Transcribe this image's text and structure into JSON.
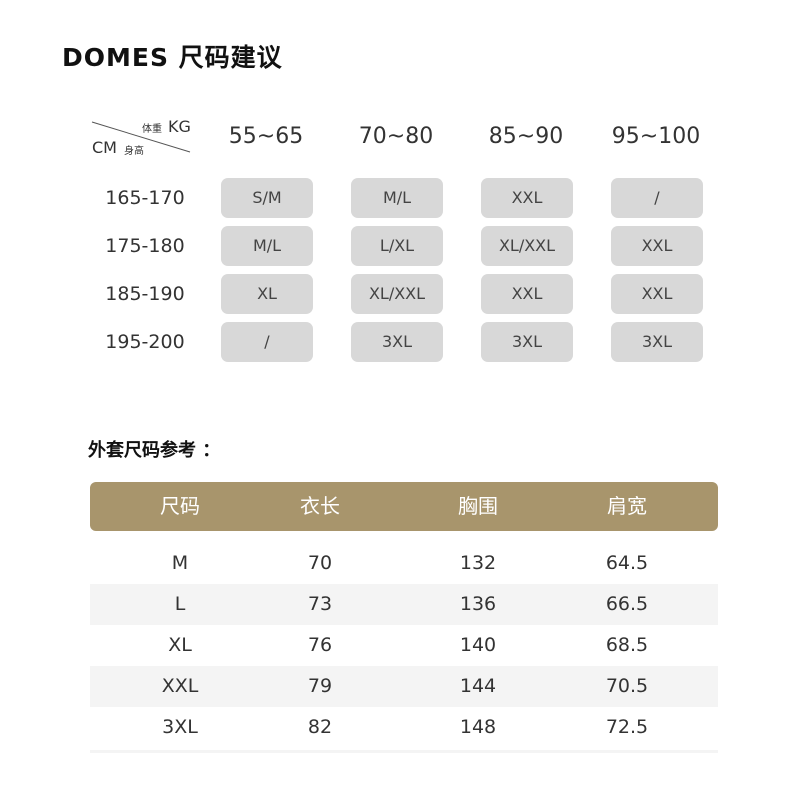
{
  "title": "DOMES  尺码建议",
  "grid": {
    "corner": {
      "weight_label": "体重",
      "weight_unit": "KG",
      "height_unit": "CM",
      "height_label": "身高"
    },
    "weights": [
      "55~65",
      "70~80",
      "85~90",
      "95~100"
    ],
    "rows": [
      {
        "height": "165-170",
        "sizes": [
          "S/M",
          "M/L",
          "XXL",
          "/"
        ]
      },
      {
        "height": "175-180",
        "sizes": [
          "M/L",
          "L/XL",
          "XL/XXL",
          "XXL"
        ]
      },
      {
        "height": "185-190",
        "sizes": [
          "XL",
          "XL/XXL",
          "XXL",
          "XXL"
        ]
      },
      {
        "height": "195-200",
        "sizes": [
          "/",
          "3XL",
          "3XL",
          "3XL"
        ]
      }
    ],
    "colors": {
      "cell_bg": "#d8d8d8"
    }
  },
  "jacket": {
    "subtitle": "外套尺码参考 ：",
    "headers": [
      "尺码",
      "衣长",
      "胸围",
      "肩宽"
    ],
    "rows": [
      [
        "M",
        "70",
        "132",
        "64.5"
      ],
      [
        "L",
        "73",
        "136",
        "66.5"
      ],
      [
        "XL",
        "76",
        "140",
        "68.5"
      ],
      [
        "XXL",
        "79",
        "144",
        "70.5"
      ],
      [
        "3XL",
        "82",
        "148",
        "72.5"
      ]
    ],
    "colors": {
      "header_bg": "#a8956c",
      "alt_row_bg": "#f4f4f4"
    }
  }
}
